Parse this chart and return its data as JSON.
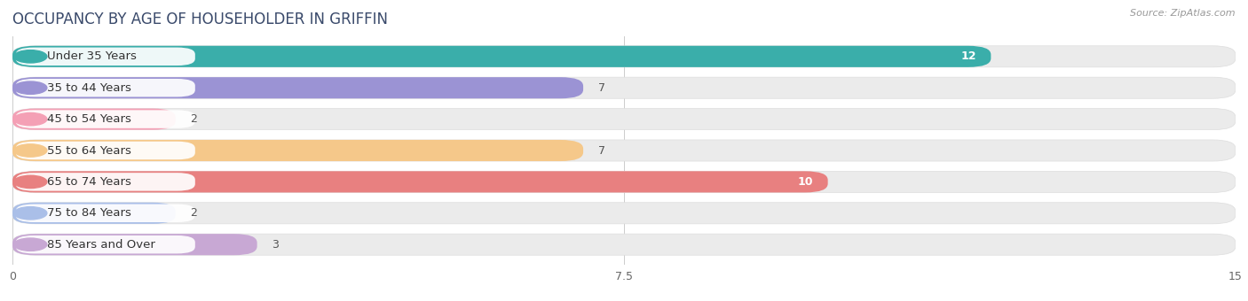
{
  "title": "OCCUPANCY BY AGE OF HOUSEHOLDER IN GRIFFIN",
  "source": "Source: ZipAtlas.com",
  "categories": [
    "Under 35 Years",
    "35 to 44 Years",
    "45 to 54 Years",
    "55 to 64 Years",
    "65 to 74 Years",
    "75 to 84 Years",
    "85 Years and Over"
  ],
  "values": [
    12,
    7,
    2,
    7,
    10,
    2,
    3
  ],
  "bar_colors": [
    "#3aaeaa",
    "#9b93d4",
    "#f4a0b5",
    "#f5c88a",
    "#e88080",
    "#aabfe8",
    "#c8a8d4"
  ],
  "bar_bg_colors": [
    "#ebebeb",
    "#ebebeb",
    "#ebebeb",
    "#ebebeb",
    "#ebebeb",
    "#ebebeb",
    "#ebebeb"
  ],
  "xlim": [
    0,
    15
  ],
  "xticks": [
    0,
    7.5,
    15
  ],
  "background_color": "#ffffff",
  "title_fontsize": 12,
  "bar_height": 0.68,
  "label_fontsize": 9.5,
  "value_fontsize": 9
}
